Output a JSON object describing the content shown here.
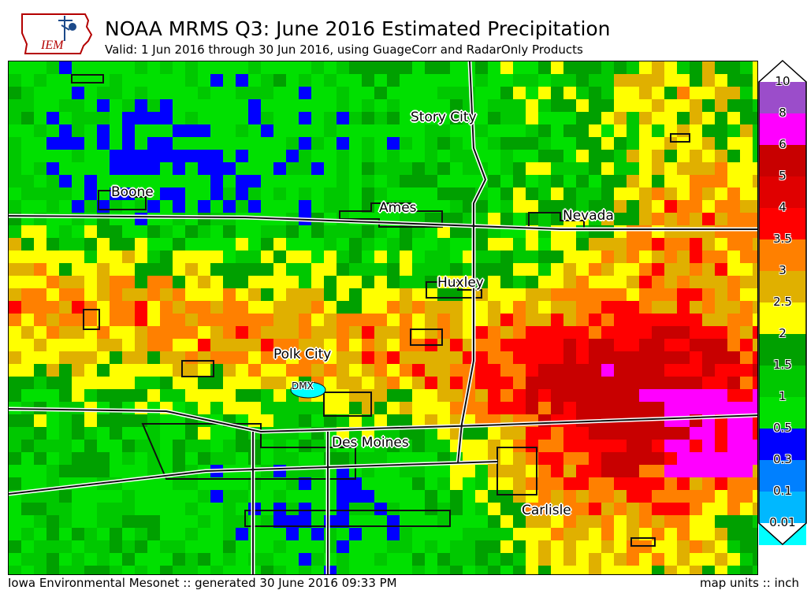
{
  "header": {
    "logo_text": "IEM",
    "title": "NOAA MRMS Q3: June 2016 Estimated Precipitation",
    "subtitle": "Valid: 1 Jun 2016 through 30 Jun 2016, using GuageCorr and RadarOnly Products"
  },
  "map": {
    "cities": [
      {
        "name": "Story City"
      },
      {
        "name": "Boone"
      },
      {
        "name": "Ames"
      },
      {
        "name": "Nevada"
      },
      {
        "name": "Huxley"
      },
      {
        "name": "Polk City"
      },
      {
        "name": "Des Moines"
      },
      {
        "name": "Carlisle"
      }
    ],
    "radar_site": "DMX"
  },
  "legend": {
    "units": "inch",
    "labels": [
      "10",
      "8",
      "6",
      "5",
      "4",
      "3.5",
      "3",
      "2.5",
      "2",
      "1.5",
      "1",
      "0.5",
      "0.3",
      "0.1",
      "0.01"
    ],
    "colors": [
      "#9b4dca",
      "#ff00ff",
      "#c80000",
      "#e00000",
      "#ff0000",
      "#ff8000",
      "#e0b000",
      "#ffff00",
      "#00a000",
      "#00c800",
      "#00e000",
      "#0000ff",
      "#0080ff",
      "#00b8ff",
      "#00ffff"
    ]
  },
  "footer": {
    "left": "Iowa Environmental Mesonet :: generated 30 June 2016 09:33 PM",
    "right": "map units :: inch"
  }
}
